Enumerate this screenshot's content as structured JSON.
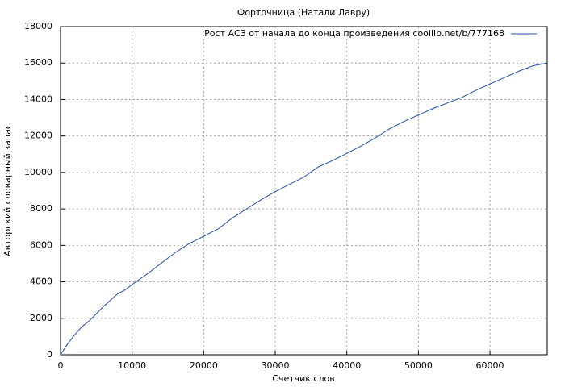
{
  "chart_data": {
    "type": "line",
    "title": "Форточница (Натали Лавру)",
    "x_label": "Счетчик слов",
    "y_label": "Авторский словарный запас",
    "x": [
      0,
      1000,
      2000,
      3000,
      4000,
      5000,
      6000,
      7000,
      8000,
      9000,
      10000,
      12000,
      14000,
      16000,
      18000,
      20000,
      22000,
      24000,
      26000,
      28000,
      30000,
      32000,
      34000,
      36000,
      38000,
      40000,
      42000,
      44000,
      46000,
      48000,
      50000,
      52000,
      54000,
      56000,
      58000,
      60000,
      62000,
      64000,
      66000,
      68000
    ],
    "series": [
      {
        "name": "Рост АСЗ от начала до конца произведения coollib.net/b/777168",
        "color": "#1f4fa8",
        "values": [
          0,
          600,
          1100,
          1550,
          1850,
          2250,
          2650,
          3000,
          3350,
          3550,
          3850,
          4400,
          5000,
          5600,
          6100,
          6500,
          6900,
          7500,
          8000,
          8500,
          8950,
          9350,
          9750,
          10300,
          10650,
          11050,
          11450,
          11900,
          12400,
          12800,
          13150,
          13500,
          13800,
          14100,
          14500,
          14850,
          15200,
          15550,
          15850,
          16000
        ]
      }
    ],
    "xlim": [
      0,
      68000
    ],
    "ylim": [
      0,
      18000
    ],
    "xticks": [
      0,
      10000,
      20000,
      30000,
      40000,
      50000,
      60000
    ],
    "yticks": [
      0,
      2000,
      4000,
      6000,
      8000,
      10000,
      12000,
      14000,
      16000,
      18000
    ],
    "grid": true,
    "legend": "top-right"
  }
}
